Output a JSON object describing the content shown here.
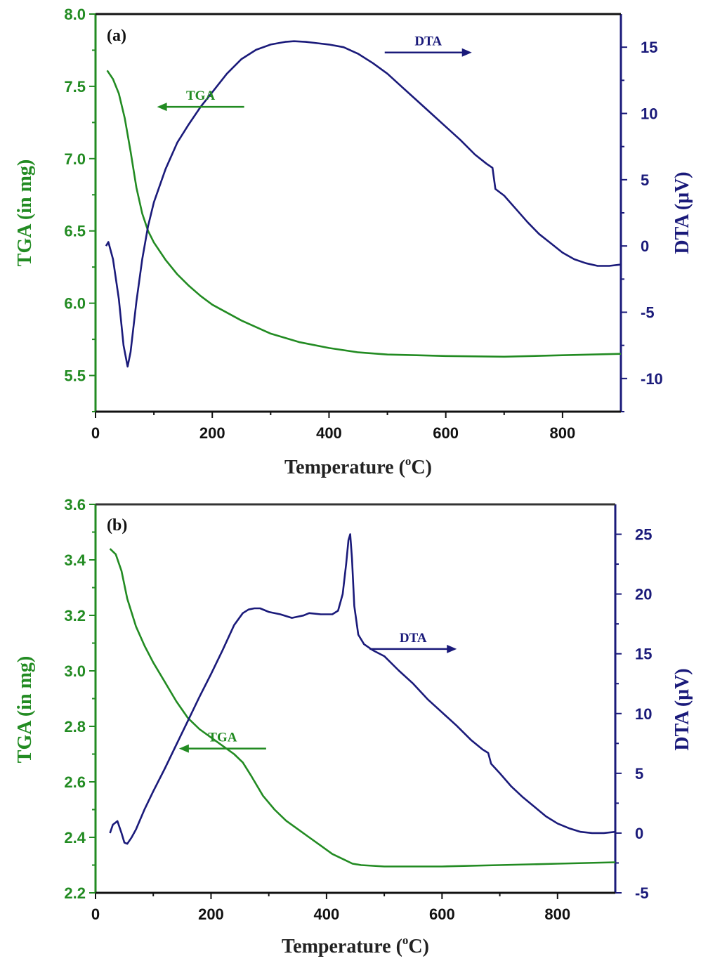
{
  "colors": {
    "tga": "#228b22",
    "dta": "#1a1a7a",
    "axis_x": "#333333"
  },
  "chart_data": [
    {
      "type": "line",
      "panel_label": "(a)",
      "xlabel": "Temperature (",
      "xlabel_sup": "o",
      "xlabel_end": "C)",
      "ylabel_left": "TGA (in mg)",
      "ylabel_right": "DTA (μV)",
      "xlim": [
        0,
        900
      ],
      "ylim_left": [
        5.25,
        8.0
      ],
      "ylim_right": [
        -12.5,
        17.5
      ],
      "xticks": [
        0,
        200,
        400,
        600,
        800
      ],
      "xtick_labels": [
        "0",
        "200",
        "400",
        "600",
        "800"
      ],
      "yticks_left": [
        5.5,
        6.0,
        6.5,
        7.0,
        7.5,
        8.0
      ],
      "ytick_labels_left": [
        "5.5",
        "6.0",
        "6.5",
        "7.0",
        "7.5",
        "8.0"
      ],
      "yticks_right": [
        -10,
        -5,
        0,
        5,
        10,
        15
      ],
      "ytick_labels_right": [
        "-10",
        "-5",
        "0",
        "5",
        "10",
        "15"
      ],
      "annotations": [
        {
          "text": "TGA",
          "x": 180,
          "y": 10.5,
          "axis": "right",
          "arrow": "left"
        },
        {
          "text": "DTA",
          "x": 570,
          "y": 14.6,
          "axis": "right",
          "arrow": "right"
        }
      ],
      "series": [
        {
          "name": "TGA",
          "axis": "left",
          "x": [
            20,
            30,
            40,
            50,
            60,
            70,
            80,
            90,
            100,
            120,
            140,
            160,
            180,
            200,
            250,
            300,
            350,
            400,
            450,
            500,
            550,
            600,
            700,
            800,
            900
          ],
          "y": [
            7.61,
            7.55,
            7.45,
            7.28,
            7.05,
            6.8,
            6.62,
            6.5,
            6.42,
            6.3,
            6.2,
            6.12,
            6.05,
            5.99,
            5.88,
            5.79,
            5.73,
            5.69,
            5.66,
            5.645,
            5.64,
            5.635,
            5.63,
            5.64,
            5.65
          ]
        },
        {
          "name": "DTA",
          "axis": "right",
          "x": [
            18,
            22,
            30,
            40,
            48,
            55,
            60,
            70,
            80,
            90,
            100,
            120,
            140,
            160,
            180,
            200,
            225,
            250,
            275,
            300,
            325,
            340,
            360,
            380,
            400,
            425,
            450,
            475,
            500,
            525,
            550,
            575,
            600,
            625,
            650,
            670,
            680,
            685,
            700,
            720,
            740,
            760,
            780,
            800,
            820,
            840,
            860,
            880,
            900
          ],
          "y": [
            0.0,
            0.3,
            -1.0,
            -4.0,
            -7.5,
            -9.1,
            -8.0,
            -4.2,
            -1.0,
            1.5,
            3.3,
            5.8,
            7.8,
            9.2,
            10.5,
            11.6,
            13.0,
            14.1,
            14.8,
            15.2,
            15.4,
            15.45,
            15.4,
            15.3,
            15.2,
            15.0,
            14.5,
            13.8,
            13.0,
            12.0,
            11.0,
            10.0,
            9.0,
            8.0,
            6.9,
            6.2,
            5.9,
            4.3,
            3.8,
            2.8,
            1.8,
            0.9,
            0.2,
            -0.5,
            -1.0,
            -1.3,
            -1.5,
            -1.5,
            -1.4
          ]
        }
      ]
    },
    {
      "type": "line",
      "panel_label": "(b)",
      "xlabel": "Temperature (",
      "xlabel_sup": "o",
      "xlabel_end": "C)",
      "ylabel_left": "TGA (in mg)",
      "ylabel_right": "DTA (μV)",
      "xlim": [
        0,
        900
      ],
      "ylim_left": [
        2.2,
        3.6
      ],
      "ylim_right": [
        -5,
        27.5
      ],
      "xticks": [
        0,
        200,
        400,
        600,
        800
      ],
      "xtick_labels": [
        "0",
        "200",
        "400",
        "600",
        "800"
      ],
      "yticks_left": [
        2.2,
        2.4,
        2.6,
        2.8,
        3.0,
        3.2,
        3.4,
        3.6
      ],
      "ytick_labels_left": [
        "2.2",
        "2.4",
        "2.6",
        "2.8",
        "3.0",
        "3.2",
        "3.4",
        "3.6"
      ],
      "yticks_right": [
        -5,
        0,
        5,
        10,
        15,
        20,
        25
      ],
      "ytick_labels_right": [
        "-5",
        "0",
        "5",
        "10",
        "15",
        "20",
        "25"
      ],
      "annotations": [
        {
          "text": "TGA",
          "x": 220,
          "y": 2.72,
          "axis": "left",
          "arrow": "left"
        },
        {
          "text": "DTA",
          "x": 550,
          "y": 15.4,
          "axis": "right",
          "arrow": "right"
        }
      ],
      "series": [
        {
          "name": "TGA",
          "axis": "left",
          "x": [
            25,
            35,
            45,
            55,
            70,
            85,
            100,
            120,
            140,
            160,
            180,
            200,
            220,
            240,
            255,
            270,
            290,
            310,
            330,
            350,
            370,
            390,
            410,
            430,
            445,
            460,
            500,
            600,
            700,
            800,
            900
          ],
          "y": [
            3.44,
            3.42,
            3.36,
            3.26,
            3.16,
            3.09,
            3.03,
            2.96,
            2.89,
            2.83,
            2.79,
            2.76,
            2.73,
            2.7,
            2.67,
            2.62,
            2.55,
            2.5,
            2.46,
            2.43,
            2.4,
            2.37,
            2.34,
            2.32,
            2.305,
            2.3,
            2.295,
            2.295,
            2.3,
            2.305,
            2.31
          ]
        },
        {
          "name": "DTA",
          "axis": "right",
          "x": [
            25,
            30,
            38,
            45,
            50,
            55,
            62,
            70,
            85,
            100,
            120,
            140,
            160,
            180,
            200,
            220,
            240,
            255,
            265,
            275,
            285,
            300,
            320,
            340,
            350,
            360,
            370,
            390,
            410,
            420,
            428,
            434,
            438,
            441,
            444,
            448,
            455,
            465,
            480,
            500,
            525,
            550,
            575,
            600,
            625,
            650,
            670,
            680,
            685,
            700,
            720,
            740,
            760,
            780,
            800,
            820,
            840,
            860,
            880,
            900
          ],
          "y": [
            0.0,
            0.7,
            1.0,
            0.0,
            -0.8,
            -0.9,
            -0.4,
            0.3,
            2.0,
            3.5,
            5.4,
            7.4,
            9.4,
            11.4,
            13.3,
            15.3,
            17.4,
            18.4,
            18.7,
            18.8,
            18.8,
            18.5,
            18.3,
            18.0,
            18.1,
            18.2,
            18.4,
            18.3,
            18.3,
            18.6,
            20.0,
            22.5,
            24.5,
            25.0,
            23.0,
            19.0,
            16.6,
            15.8,
            15.3,
            14.8,
            13.6,
            12.5,
            11.2,
            10.1,
            9.0,
            7.8,
            7.0,
            6.7,
            5.8,
            5.0,
            3.9,
            3.0,
            2.2,
            1.4,
            0.8,
            0.4,
            0.1,
            0.0,
            0.0,
            0.1
          ]
        }
      ]
    }
  ]
}
